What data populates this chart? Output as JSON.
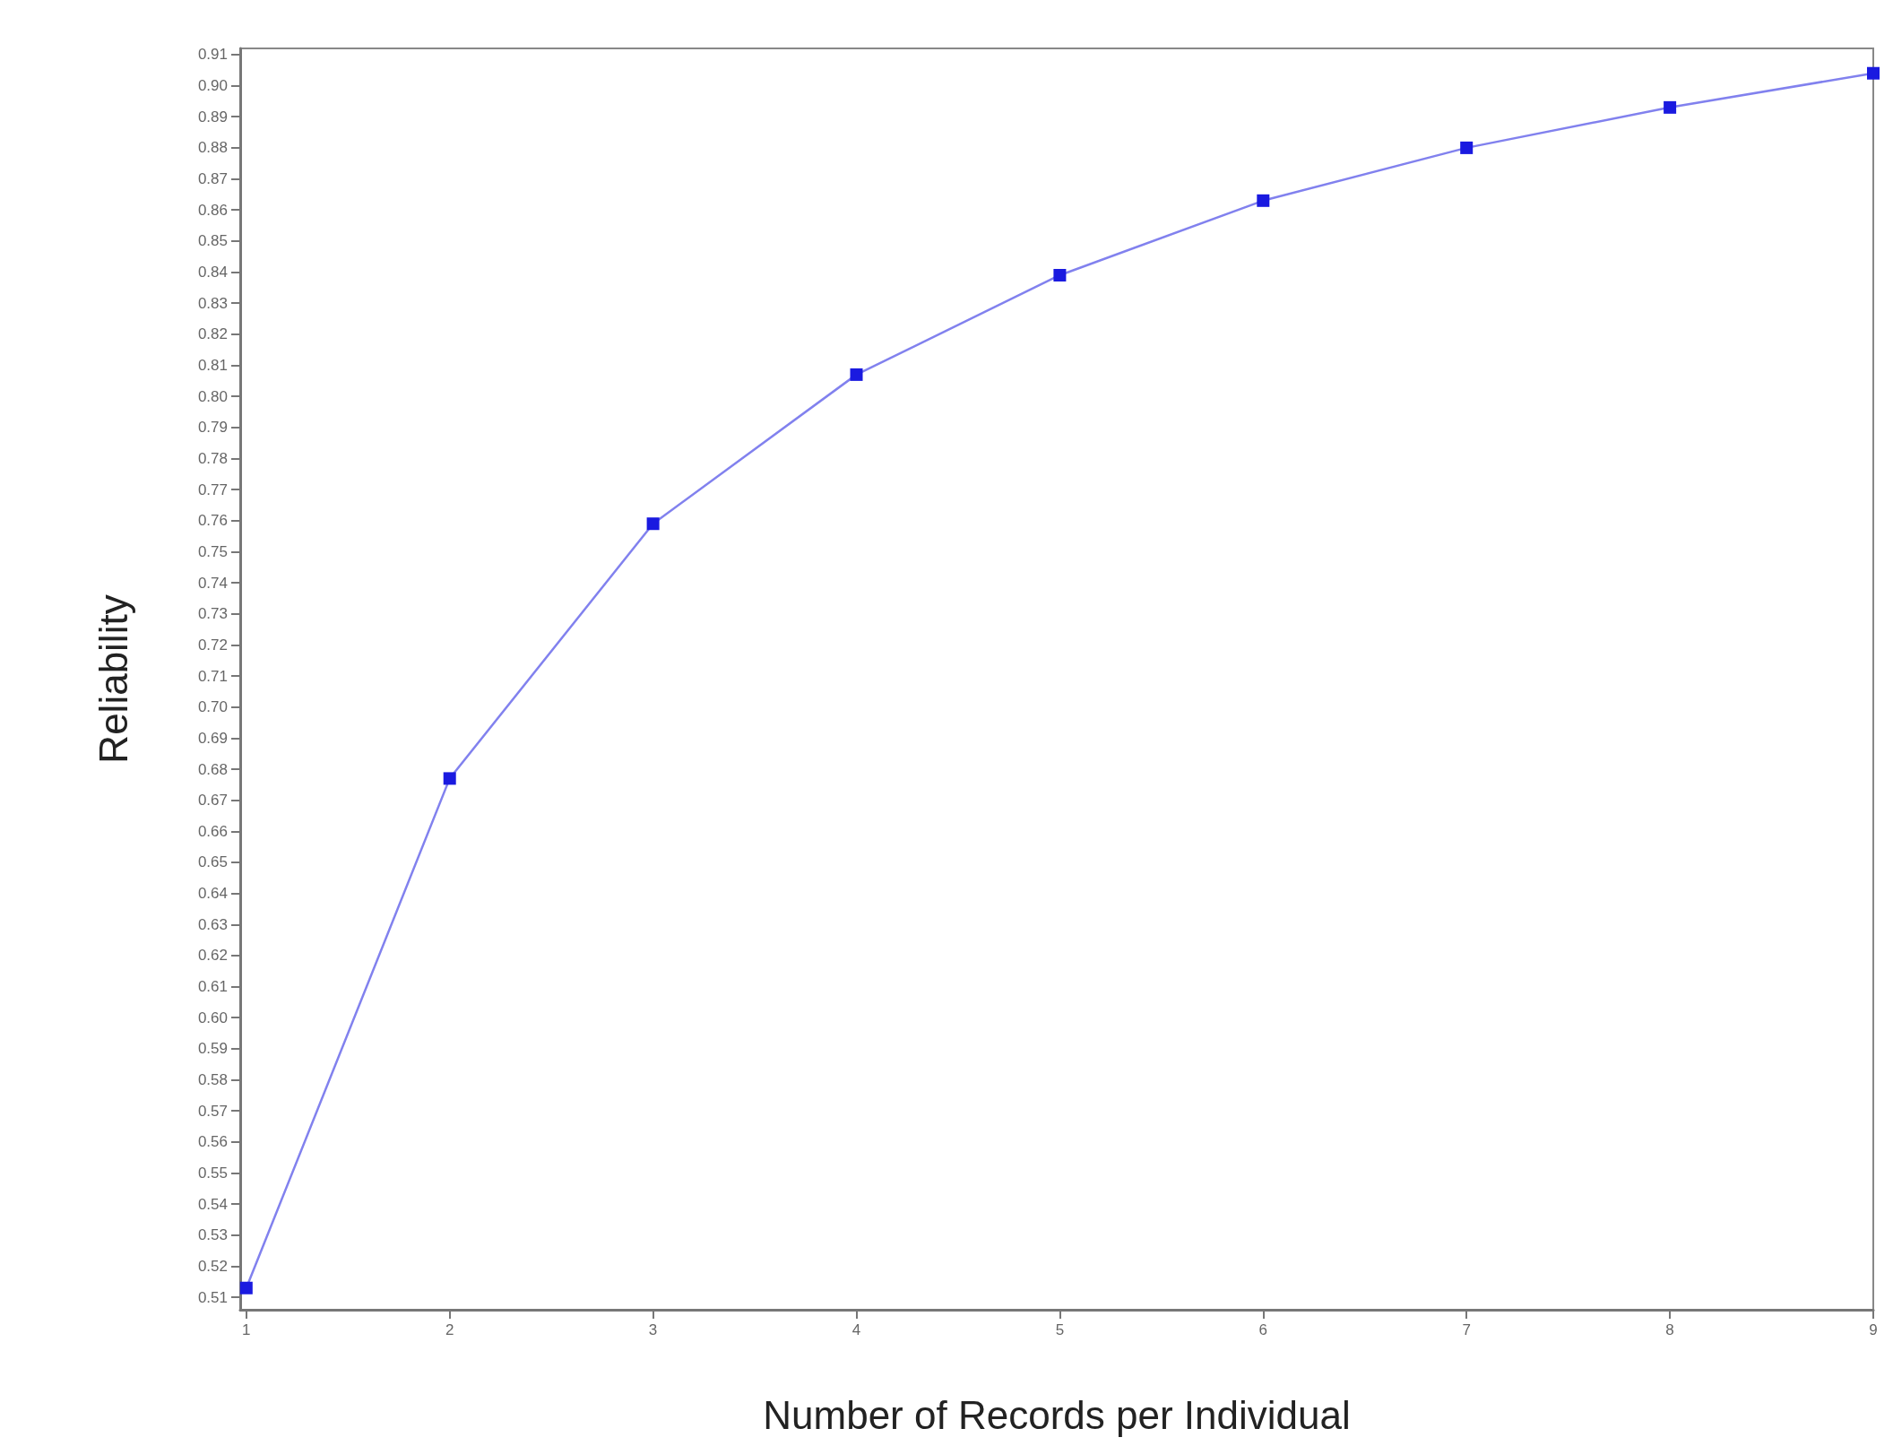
{
  "chart_data": {
    "type": "line",
    "xlabel": "Number of Records per Individual",
    "ylabel": "Reliability",
    "x": [
      1,
      2,
      3,
      4,
      5,
      6,
      7,
      8,
      9
    ],
    "series": [
      {
        "color": "#1a1ae0",
        "values": [
          0.513,
          0.677,
          0.759,
          0.807,
          0.839,
          0.863,
          0.88,
          0.893,
          0.904
        ]
      }
    ],
    "xlim": [
      0.97,
      9
    ],
    "xticks": [
      1,
      2,
      3,
      4,
      5,
      6,
      7,
      8,
      9
    ],
    "ylim": [
      0.506,
      0.912
    ],
    "yticks": [
      0.51,
      0.52,
      0.53,
      0.54,
      0.55,
      0.56,
      0.57,
      0.58,
      0.59,
      {
        "value": 0.6,
        "label": "0.60"
      },
      0.61,
      0.62,
      0.63,
      0.64,
      0.65,
      0.66,
      0.67,
      0.68,
      0.69,
      {
        "value": 0.7,
        "label": "0.70"
      },
      0.71,
      0.72,
      0.73,
      0.74,
      0.75,
      0.76,
      0.77,
      0.78,
      0.79,
      {
        "value": 0.8,
        "label": "0.80"
      },
      0.81,
      0.82,
      0.83,
      0.84,
      0.85,
      0.86,
      0.87,
      0.88,
      0.89,
      {
        "value": 0.9,
        "label": "0.90"
      },
      0.91
    ],
    "marker": "square",
    "line_style": "solid",
    "grid": false
  }
}
